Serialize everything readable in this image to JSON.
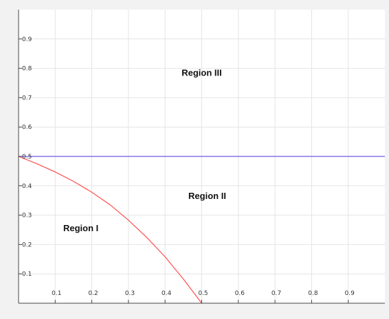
{
  "chart_data": {
    "type": "line",
    "xlim": [
      0,
      1
    ],
    "ylim": [
      0,
      1
    ],
    "x_ticks": [
      "0.1",
      "0.2",
      "0.3",
      "0.4",
      "0.5",
      "0.6",
      "0.7",
      "0.8",
      "0.9"
    ],
    "y_ticks": [
      "0.1",
      "0.2",
      "0.3",
      "0.4",
      "0.5",
      "0.6",
      "0.7",
      "0.8",
      "0.9"
    ],
    "grid": true,
    "series": [
      {
        "color": "#ff4d4d",
        "x": [
          0,
          0.05,
          0.1,
          0.15,
          0.2,
          0.25,
          0.3,
          0.35,
          0.4,
          0.45,
          0.5
        ],
        "y": [
          0.5,
          0.475,
          0.447,
          0.415,
          0.378,
          0.335,
          0.283,
          0.224,
          0.158,
          0.082,
          0.0
        ]
      },
      {
        "color": "#6a5ae0",
        "x": [
          0,
          1
        ],
        "y": [
          0.5,
          0.5
        ]
      }
    ],
    "annotations": [
      {
        "text": "Region III",
        "x": 0.5,
        "y": 0.775
      },
      {
        "text": "Region II",
        "x": 0.515,
        "y": 0.355
      },
      {
        "text": "Region I",
        "x": 0.17,
        "y": 0.245
      }
    ]
  }
}
